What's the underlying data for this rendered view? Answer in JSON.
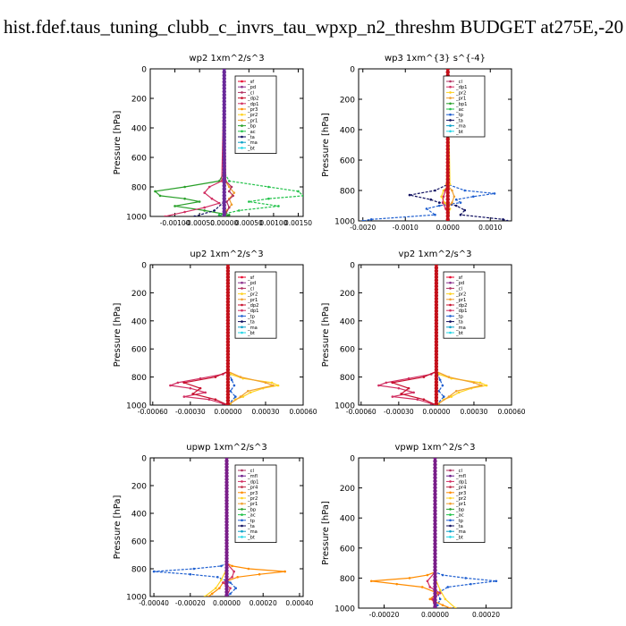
{
  "page_title": "hist.fdef.taus_tuning_clubb_c_invrs_tau_wpxp_n2_threshm  BUDGET at275E,-20",
  "colors": {
    "sf": "#e8002a",
    "pd": "#8b2f8b",
    "cl": "#b03060",
    "dp2": "#c8102e",
    "dp1": "#d12f62",
    "pr3": "#ff8c00",
    "pr2": "#ffd21f",
    "pr1": "#f0a030",
    "bp": "#2aa02a",
    "ac": "#22c24a",
    "tp": "#1f5fd0",
    "ta": "#101060",
    "ma": "#0aa0c8",
    "bt": "#22d6e6",
    "mfl": "#6a1a8a",
    "pr4": "#c0304a"
  },
  "chart_data": [
    {
      "type": "line",
      "title": "wp2   1xm^2/s^3",
      "ylabel": "Pressure  [hPa]",
      "xlim": [
        -0.0015,
        0.0016
      ],
      "ylim": [
        1000,
        0
      ],
      "xticks": [
        -0.001,
        -0.0005,
        0.0,
        0.0005,
        0.001,
        0.0015
      ],
      "xtick_labels": [
        "-0.00100",
        "-0.00050",
        "0.00000",
        "0.00050",
        "0.00100",
        "0.00150"
      ],
      "yticks": [
        0,
        200,
        400,
        600,
        800,
        1000
      ],
      "legend": [
        "_sf",
        "_pd",
        "_cl",
        "_dp2",
        "_dp1",
        "_pr3",
        "_pr2",
        "_pr1",
        "_bp",
        "_ac",
        "_ta",
        "_ma",
        "_bt"
      ],
      "series": [
        {
          "name": "_ac",
          "color_key": "ac",
          "p": [
            0,
            700,
            760,
            800,
            830,
            860,
            880,
            900,
            930,
            960,
            990,
            1000
          ],
          "values": [
            0,
            0,
            0.0001,
            0.0009,
            0.0015,
            0.0016,
            0.0009,
            0.0005,
            0.0011,
            0.0003,
            -0.0001,
            0
          ]
        },
        {
          "name": "_bp",
          "color_key": "bp",
          "p": [
            0,
            700,
            760,
            800,
            830,
            860,
            880,
            900,
            930,
            960,
            990,
            1000
          ],
          "values": [
            0,
            0,
            -0.0001,
            -0.0008,
            -0.0014,
            -0.0013,
            -0.0008,
            -0.0005,
            -0.001,
            -0.0004,
            0.0001,
            0
          ]
        },
        {
          "name": "_pr1",
          "color_key": "pr1",
          "p": [
            0,
            760,
            800,
            840,
            880,
            920,
            960,
            1000
          ],
          "values": [
            0,
            2e-05,
            0.0001,
            0.0002,
            0.0001,
            0.00015,
            5e-05,
            0
          ]
        },
        {
          "name": "_dp1",
          "color_key": "dp1",
          "p": [
            0,
            760,
            800,
            840,
            880,
            910,
            940,
            970,
            1000
          ],
          "values": [
            0,
            -5e-05,
            -0.0003,
            -0.0004,
            -0.00025,
            -0.0001,
            -0.0004,
            -0.0008,
            -0.0012
          ]
        },
        {
          "name": "_cl",
          "color_key": "cl",
          "p": [
            0,
            760,
            800,
            830,
            860,
            900,
            940,
            1000
          ],
          "values": [
            0,
            3e-05,
            0.00015,
            0.0001,
            0.00018,
            5e-05,
            0.0001,
            0
          ]
        },
        {
          "name": "_ta",
          "color_key": "ta",
          "p": [
            0,
            900,
            960,
            1000
          ],
          "values": [
            0,
            0,
            -0.0002,
            -0.0006
          ]
        },
        {
          "name": "_pd",
          "color_key": "pd",
          "p": [
            0,
            1000
          ],
          "values": [
            0,
            0
          ]
        }
      ]
    },
    {
      "type": "line",
      "title": "wp3   1xm^{3} s^{-4}",
      "ylabel": "Pressure  [hPa]",
      "xlim": [
        -0.0021,
        0.0015
      ],
      "ylim": [
        1000,
        0
      ],
      "xticks": [
        -0.002,
        -0.001,
        0.0,
        0.001
      ],
      "xtick_labels": [
        "-0.0020",
        "-0.0010",
        "0.0000",
        "0.0010"
      ],
      "yticks": [
        0,
        200,
        400,
        600,
        800,
        1000
      ],
      "legend": [
        "_cl",
        "_dp1",
        "_pr2",
        "_pr1",
        "_bp1",
        "_ac",
        "_tp",
        "_ta",
        "_ma",
        "_bt"
      ],
      "series": [
        {
          "name": "_tp",
          "color_key": "tp",
          "p": [
            0,
            760,
            800,
            820,
            840,
            860,
            880,
            900,
            920,
            960,
            990,
            1000
          ],
          "values": [
            0,
            0,
            0.0004,
            0.0011,
            0.0006,
            0.0002,
            0.0003,
            -0.0002,
            -0.0005,
            -0.0003,
            -0.0018,
            -0.002
          ]
        },
        {
          "name": "_ta",
          "color_key": "ta",
          "p": [
            0,
            760,
            800,
            830,
            860,
            880,
            900,
            930,
            960,
            990,
            1000
          ],
          "values": [
            0,
            0,
            -0.0003,
            -0.0009,
            -0.0004,
            -0.0002,
            0.0002,
            0.0004,
            0.0003,
            0.0013,
            0.0014
          ]
        },
        {
          "name": "_pr2",
          "color_key": "pr2",
          "p": [
            0,
            760,
            800,
            840,
            880,
            920,
            960,
            1000
          ],
          "values": [
            0,
            5e-05,
            -0.0001,
            -0.00015,
            -8e-05,
            5e-05,
            2e-05,
            0
          ]
        },
        {
          "name": "_pr1",
          "color_key": "pr1",
          "p": [
            0,
            760,
            800,
            840,
            880,
            920,
            960,
            1000
          ],
          "values": [
            0,
            -3e-05,
            0.0001,
            0.00015,
            0.0001,
            -4e-05,
            2e-05,
            0
          ]
        },
        {
          "name": "_dp1",
          "color_key": "dp1",
          "p": [
            0,
            760,
            800,
            840,
            880,
            920,
            960,
            1000
          ],
          "values": [
            0,
            0,
            -6e-05,
            -0.0001,
            -0.00012,
            -5e-05,
            1e-05,
            0
          ]
        },
        {
          "name": "_cl",
          "color_key": "cl",
          "p": [
            0,
            1000
          ],
          "values": [
            0,
            0
          ]
        }
      ]
    },
    {
      "type": "line",
      "title": "up2   1xm^2/s^3",
      "ylabel": "Pressure  [hPa]",
      "xlim": [
        -0.00062,
        0.0006
      ],
      "ylim": [
        1000,
        0
      ],
      "xticks": [
        -0.0006,
        -0.0003,
        0.0,
        0.0003,
        0.0006
      ],
      "xtick_labels": [
        "-0.00060",
        "-0.00030",
        "0.00000",
        "0.00030",
        "0.00060"
      ],
      "yticks": [
        0,
        200,
        400,
        600,
        800,
        1000
      ],
      "legend": [
        "_sf",
        "_pd",
        "_cl",
        "_pr2",
        "_pr1",
        "_dp2",
        "_dp1",
        "_tp",
        "_ta",
        "_ma",
        "_bt"
      ],
      "series": [
        {
          "name": "_pr2",
          "color_key": "pr2",
          "p": [
            0,
            760,
            780,
            810,
            840,
            860,
            880,
            910,
            940,
            960,
            990,
            1000
          ],
          "values": [
            0,
            0,
            2e-05,
            0.00012,
            0.00035,
            0.0004,
            0.00028,
            0.00018,
            0.00012,
            6e-05,
            2e-05,
            0
          ]
        },
        {
          "name": "_pr1",
          "color_key": "pr1",
          "p": [
            0,
            760,
            800,
            840,
            860,
            900,
            940,
            1000
          ],
          "values": [
            0,
            0,
            0.0001,
            0.0003,
            0.00036,
            0.00016,
            0.0001,
            0
          ]
        },
        {
          "name": "_dp1",
          "color_key": "dp1",
          "p": [
            0,
            760,
            780,
            810,
            840,
            860,
            880,
            910,
            940,
            960,
            990,
            1000
          ],
          "values": [
            0,
            0,
            -4e-05,
            -0.00022,
            -0.0004,
            -0.00046,
            -0.0003,
            -0.00018,
            -0.00035,
            -0.00015,
            -4e-05,
            0
          ]
        },
        {
          "name": "_dp2",
          "color_key": "dp2",
          "p": [
            0,
            760,
            800,
            840,
            880,
            920,
            960,
            1000
          ],
          "values": [
            0,
            0,
            -0.0001,
            -0.00035,
            -0.00022,
            -0.00028,
            -0.0001,
            0
          ]
        },
        {
          "name": "_tp",
          "color_key": "tp",
          "p": [
            0,
            760,
            820,
            860,
            900,
            940,
            1000
          ],
          "values": [
            0,
            0,
            3e-05,
            5e-05,
            2e-05,
            6e-05,
            0
          ]
        },
        {
          "name": "_sf",
          "color_key": "sf",
          "p": [
            0,
            1000
          ],
          "values": [
            0,
            0
          ]
        }
      ]
    },
    {
      "type": "line",
      "title": "vp2   1xm^2/s^3",
      "ylabel": "Pressure  [hPa]",
      "xlim": [
        -0.00062,
        0.0006
      ],
      "ylim": [
        1000,
        0
      ],
      "xticks": [
        -0.0006,
        -0.0003,
        0.0,
        0.0003,
        0.0006
      ],
      "xtick_labels": [
        "-0.00060",
        "-0.00030",
        "0.00000",
        "0.00030",
        "0.00060"
      ],
      "yticks": [
        0,
        200,
        400,
        600,
        800,
        1000
      ],
      "legend": [
        "_sf",
        "_pd",
        "_cl",
        "_pr2",
        "_pr1",
        "_dp2",
        "_dp1",
        "_tp",
        "_ta",
        "_ma",
        "_bt"
      ],
      "series": [
        {
          "name": "_pr2",
          "color_key": "pr2",
          "p": [
            0,
            760,
            780,
            810,
            840,
            860,
            880,
            910,
            940,
            960,
            990,
            1000
          ],
          "values": [
            0,
            0,
            2e-05,
            0.00012,
            0.00035,
            0.0004,
            0.00028,
            0.00018,
            0.00012,
            6e-05,
            2e-05,
            0
          ]
        },
        {
          "name": "_pr1",
          "color_key": "pr1",
          "p": [
            0,
            760,
            800,
            840,
            860,
            900,
            940,
            1000
          ],
          "values": [
            0,
            0,
            0.0001,
            0.0003,
            0.00036,
            0.00016,
            0.0001,
            0
          ]
        },
        {
          "name": "_dp1",
          "color_key": "dp1",
          "p": [
            0,
            760,
            780,
            810,
            840,
            860,
            880,
            910,
            940,
            960,
            990,
            1000
          ],
          "values": [
            0,
            0,
            -4e-05,
            -0.00022,
            -0.0004,
            -0.00046,
            -0.0003,
            -0.00018,
            -0.00035,
            -0.00015,
            -4e-05,
            0
          ]
        },
        {
          "name": "_dp2",
          "color_key": "dp2",
          "p": [
            0,
            760,
            800,
            840,
            880,
            920,
            960,
            1000
          ],
          "values": [
            0,
            0,
            -0.0001,
            -0.00035,
            -0.00022,
            -0.00028,
            -0.0001,
            0
          ]
        },
        {
          "name": "_tp",
          "color_key": "tp",
          "p": [
            0,
            760,
            820,
            860,
            900,
            940,
            1000
          ],
          "values": [
            0,
            0,
            3e-05,
            5e-05,
            2e-05,
            6e-05,
            0
          ]
        },
        {
          "name": "_sf",
          "color_key": "sf",
          "p": [
            0,
            1000
          ],
          "values": [
            0,
            0
          ]
        }
      ]
    },
    {
      "type": "line",
      "title": "upwp   1xm^2/s^3",
      "ylabel": "Pressure  [hPa]",
      "xlim": [
        -0.00042,
        0.00042
      ],
      "ylim": [
        1000,
        0
      ],
      "xticks": [
        -0.0004,
        -0.0002,
        0.0,
        0.0002,
        0.0004
      ],
      "xtick_labels": [
        "-0.00040",
        "-0.00020",
        "0.00000",
        "0.00020",
        "0.00040"
      ],
      "yticks": [
        0,
        200,
        400,
        600,
        800,
        1000
      ],
      "legend": [
        "_cl",
        "_mfl",
        "_dp1",
        "_pr4",
        "_pr3",
        "_pr2",
        "_pr1",
        "_bp",
        "_ac",
        "_tp",
        "_ta",
        "_ma",
        "_bt"
      ],
      "series": [
        {
          "name": "_tp",
          "color_key": "tp",
          "p": [
            0,
            760,
            780,
            800,
            820,
            840,
            860,
            900,
            940,
            980,
            1000
          ],
          "values": [
            0,
            0,
            -3e-05,
            -0.00018,
            -0.0004,
            -0.0002,
            -5e-05,
            2e-05,
            5e-05,
            2e-05,
            0
          ]
        },
        {
          "name": "_pr3",
          "color_key": "pr3",
          "p": [
            0,
            760,
            780,
            800,
            820,
            840,
            860,
            900,
            940,
            980,
            1000
          ],
          "values": [
            0,
            0,
            3e-05,
            0.00012,
            0.00032,
            0.00018,
            6e-05,
            -2e-05,
            -4e-05,
            -8e-05,
            -0.0001
          ]
        },
        {
          "name": "_dp1",
          "color_key": "dp1",
          "p": [
            0,
            760,
            820,
            860,
            900,
            940,
            1000
          ],
          "values": [
            0,
            0,
            4e-05,
            3e-05,
            -2e-05,
            2e-05,
            0
          ]
        },
        {
          "name": "_pr2",
          "color_key": "pr2",
          "p": [
            0,
            800,
            880,
            940,
            1000
          ],
          "values": [
            0,
            0,
            -3e-05,
            -6e-05,
            -0.00012
          ]
        },
        {
          "name": "_mfl",
          "color_key": "mfl",
          "p": [
            0,
            1000
          ],
          "values": [
            0,
            0
          ]
        }
      ]
    },
    {
      "type": "line",
      "title": "vpwp   1xm^2/s^3",
      "ylabel": "Pressure  [hPa]",
      "xlim": [
        -0.0003,
        0.0003
      ],
      "ylim": [
        1000,
        0
      ],
      "xticks": [
        -0.0002,
        0.0,
        0.0002
      ],
      "xtick_labels": [
        "-0.00020",
        "0.00000",
        "0.00020"
      ],
      "yticks": [
        0,
        200,
        400,
        600,
        800,
        1000
      ],
      "legend": [
        "_cl",
        "_mfl",
        "_dp1",
        "_pr4",
        "_pr3",
        "_pr2",
        "_pr1",
        "_bp",
        "_ac",
        "_tp",
        "_ta",
        "_ma",
        "_bt"
      ],
      "series": [
        {
          "name": "_tp",
          "color_key": "tp",
          "p": [
            0,
            760,
            780,
            800,
            820,
            840,
            860,
            900,
            940,
            980,
            1000
          ],
          "values": [
            0,
            0,
            3e-05,
            0.00012,
            0.00024,
            0.00014,
            5e-05,
            1e-05,
            2e-05,
            1e-05,
            0
          ]
        },
        {
          "name": "_pr3",
          "color_key": "pr3",
          "p": [
            0,
            760,
            780,
            800,
            820,
            840,
            860,
            900,
            940,
            980,
            1000
          ],
          "values": [
            0,
            0,
            -3e-05,
            -0.0001,
            -0.00025,
            -0.00015,
            -5e-05,
            1e-05,
            -2e-05,
            3e-05,
            6e-05
          ]
        },
        {
          "name": "_dp1",
          "color_key": "dp1",
          "p": [
            0,
            760,
            820,
            860,
            900,
            940,
            1000
          ],
          "values": [
            0,
            0,
            -3e-05,
            -2e-05,
            2e-05,
            -1e-05,
            0
          ]
        },
        {
          "name": "_pr2",
          "color_key": "pr2",
          "p": [
            0,
            800,
            880,
            940,
            1000
          ],
          "values": [
            0,
            0,
            2e-05,
            4e-05,
            8e-05
          ]
        },
        {
          "name": "_mfl",
          "color_key": "mfl",
          "p": [
            0,
            1000
          ],
          "values": [
            0,
            0
          ]
        }
      ]
    }
  ]
}
